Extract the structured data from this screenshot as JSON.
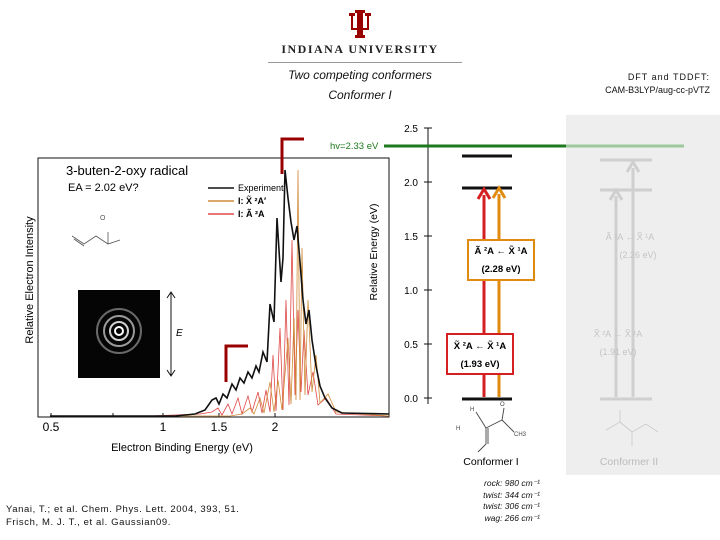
{
  "header": {
    "university": "INDIANA UNIVERSITY",
    "title_line1": "Two competing conformers",
    "title_line2": "Conformer I",
    "method_line1": "DFT and TDDFT:",
    "method_line2": "CAM-B3LYP/aug-cc-pVTZ"
  },
  "spectrum": {
    "radical_name": "3-buten-2-oxy radical",
    "ea": "EA = 2.02 eV?",
    "ylabel": "Relative Electron Intensity",
    "xlabel": "Electron Binding Energy (eV)",
    "xticks": [
      "0.5",
      "1",
      "1.5",
      "2"
    ],
    "legend": [
      {
        "label": "Experiment",
        "color": "#111111"
      },
      {
        "label": "I: X̃ ²A′",
        "color": "#d08a38"
      },
      {
        "label": "I: Ã ²A",
        "color": "#e04848"
      }
    ],
    "e_label": "E"
  },
  "energy_diagram": {
    "ylabel": "Relative Energy (eV)",
    "yticks": [
      "0.0",
      "0.5",
      "1.0",
      "1.5",
      "2.0",
      "2.5"
    ],
    "photon": "hv=2.33 eV",
    "transitions": [
      {
        "label": "Ã ²A ← X̃ ¹A",
        "value": "(2.28 eV)",
        "color": "#e08a10"
      },
      {
        "label": "X̃ ²A ← X̃ ¹A",
        "value": "(1.93 eV)",
        "color": "#d42020"
      }
    ],
    "faded_transitions": [
      {
        "label": "Ã ²A ← X̃ ¹A",
        "value": "(2.26 eV)"
      },
      {
        "label": "X̃ ²A ← X̃ ¹A",
        "value": "(1.91 eV)"
      }
    ],
    "conformer_1": "Conformer I",
    "conformer_2": "Conformer II"
  },
  "vibrations": [
    "rock: 980 cm⁻¹",
    "twist: 344 cm⁻¹",
    "twist: 306 cm⁻¹",
    "wag: 266 cm⁻¹"
  ],
  "references": [
    "Yanai, T.; et al. Chem. Phys. Lett. 2004, 393, 51.",
    "Frisch, M. J. T., et al. Gaussian09."
  ],
  "colors": {
    "iu_crimson": "#990000",
    "photon_green": "#1e7a1e",
    "orange": "#e08a10",
    "red": "#d42020"
  }
}
